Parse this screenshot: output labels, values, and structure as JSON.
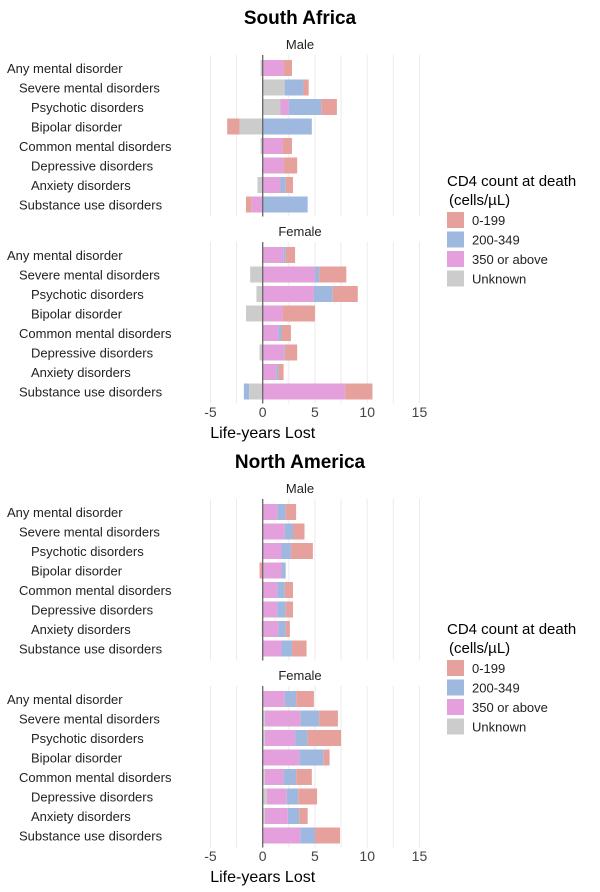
{
  "chart_data": {
    "type": "bar",
    "orientation": "horizontal-stacked",
    "xlabel": "Life-years Lost",
    "xlim": [
      -6,
      16
    ],
    "xticks": [
      "-5",
      "0",
      "5",
      "10",
      "15"
    ],
    "grid": true,
    "legend": {
      "title": "CD4 count at death",
      "subtitle": "(cells/µL)",
      "placement": "right",
      "entries": [
        {
          "key": "r",
          "label": "0-199",
          "color": "#e6a19c"
        },
        {
          "key": "b",
          "label": "200-349",
          "color": "#9fb8e0"
        },
        {
          "key": "p",
          "label": "350 or above",
          "color": "#e3a0dc"
        },
        {
          "key": "g",
          "label": "Unknown",
          "color": "#cccccc"
        }
      ]
    },
    "categories": [
      "Any mental disorder",
      "Severe mental disorders",
      "Psychotic disorders",
      "Bipolar disorder",
      "Common mental disorders",
      "Depressive disorders",
      "Anxiety disorders",
      "Substance use disorders"
    ],
    "category_indent": [
      0,
      1,
      2,
      2,
      1,
      2,
      2,
      1
    ],
    "segment_format": "[series_key, start, end] in life-years",
    "regions": [
      {
        "title": "South Africa",
        "panels": [
          {
            "label": "Male",
            "rows": [
              [
                [
                  "g",
                  -0.2,
                  0
                ],
                [
                  "p",
                  0,
                  2.0
                ],
                [
                  "r",
                  2.0,
                  2.8
                ]
              ],
              [
                [
                  "g",
                  0,
                  2.1
                ],
                [
                  "b",
                  2.1,
                  3.9
                ],
                [
                  "r",
                  3.9,
                  4.4
                ]
              ],
              [
                [
                  "g",
                  0,
                  1.7
                ],
                [
                  "p",
                  1.7,
                  2.5
                ],
                [
                  "b",
                  2.5,
                  5.6
                ],
                [
                  "r",
                  5.6,
                  7.1
                ]
              ],
              [
                [
                  "r",
                  -3.4,
                  -2.2
                ],
                [
                  "g",
                  -2.2,
                  0
                ],
                [
                  "b",
                  0,
                  4.7
                ]
              ],
              [
                [
                  "g",
                  -0.2,
                  0
                ],
                [
                  "p",
                  0,
                  1.9
                ],
                [
                  "r",
                  1.9,
                  2.8
                ]
              ],
              [
                [
                  "p",
                  0,
                  2.0
                ],
                [
                  "r",
                  2.0,
                  3.3
                ]
              ],
              [
                [
                  "g",
                  -0.5,
                  0
                ],
                [
                  "p",
                  0,
                  1.7
                ],
                [
                  "b",
                  1.7,
                  2.2
                ],
                [
                  "r",
                  2.2,
                  2.9
                ]
              ],
              [
                [
                  "r",
                  -1.6,
                  -1.05
                ],
                [
                  "p",
                  -1.05,
                  0
                ],
                [
                  "b",
                  0,
                  4.3
                ]
              ]
            ]
          },
          {
            "label": "Female",
            "rows": [
              [
                [
                  "p",
                  0,
                  2.0
                ],
                [
                  "b",
                  2.0,
                  2.2
                ],
                [
                  "r",
                  2.2,
                  3.1
                ]
              ],
              [
                [
                  "g",
                  -1.2,
                  0
                ],
                [
                  "p",
                  0,
                  5.0
                ],
                [
                  "b",
                  5.0,
                  5.4
                ],
                [
                  "r",
                  5.4,
                  8.0
                ]
              ],
              [
                [
                  "g",
                  -0.6,
                  0
                ],
                [
                  "p",
                  0,
                  4.9
                ],
                [
                  "b",
                  4.9,
                  6.7
                ],
                [
                  "r",
                  6.7,
                  9.1
                ]
              ],
              [
                [
                  "g",
                  -1.6,
                  0
                ],
                [
                  "p",
                  0,
                  1.9
                ],
                [
                  "r",
                  1.9,
                  5.0
                ]
              ],
              [
                [
                  "p",
                  0,
                  1.5
                ],
                [
                  "b",
                  1.5,
                  1.8
                ],
                [
                  "r",
                  1.8,
                  2.7
                ]
              ],
              [
                [
                  "g",
                  -0.3,
                  0
                ],
                [
                  "p",
                  0,
                  2.0
                ],
                [
                  "b",
                  2.0,
                  2.1
                ],
                [
                  "r",
                  2.1,
                  3.3
                ]
              ],
              [
                [
                  "p",
                  0,
                  1.3
                ],
                [
                  "b",
                  1.3,
                  1.5
                ],
                [
                  "r",
                  1.5,
                  2.0
                ]
              ],
              [
                [
                  "b",
                  -1.8,
                  -1.3
                ],
                [
                  "g",
                  -1.3,
                  0
                ],
                [
                  "p",
                  0,
                  7.9
                ],
                [
                  "r",
                  7.9,
                  10.5
                ]
              ]
            ]
          }
        ]
      },
      {
        "title": "North America",
        "panels": [
          {
            "label": "Male",
            "rows": [
              [
                [
                  "p",
                  0,
                  1.4
                ],
                [
                  "b",
                  1.4,
                  2.2
                ],
                [
                  "r",
                  2.2,
                  3.2
                ]
              ],
              [
                [
                  "p",
                  0,
                  2.1
                ],
                [
                  "b",
                  2.1,
                  2.9
                ],
                [
                  "r",
                  2.9,
                  4.0
                ]
              ],
              [
                [
                  "p",
                  0,
                  1.8
                ],
                [
                  "b",
                  1.8,
                  2.7
                ],
                [
                  "r",
                  2.7,
                  4.8
                ]
              ],
              [
                [
                  "r",
                  -0.3,
                  0
                ],
                [
                  "p",
                  0,
                  1.8
                ],
                [
                  "b",
                  1.8,
                  2.2
                ]
              ],
              [
                [
                  "p",
                  0,
                  1.4
                ],
                [
                  "b",
                  1.4,
                  2.1
                ],
                [
                  "r",
                  2.1,
                  2.9
                ]
              ],
              [
                [
                  "p",
                  0,
                  1.4
                ],
                [
                  "b",
                  1.4,
                  2.2
                ],
                [
                  "r",
                  2.2,
                  2.9
                ]
              ],
              [
                [
                  "g",
                  -0.1,
                  0
                ],
                [
                  "p",
                  0,
                  1.5
                ],
                [
                  "b",
                  1.5,
                  2.2
                ],
                [
                  "r",
                  2.2,
                  2.6
                ]
              ],
              [
                [
                  "p",
                  0,
                  1.8
                ],
                [
                  "b",
                  1.8,
                  2.8
                ],
                [
                  "r",
                  2.8,
                  4.2
                ]
              ]
            ]
          },
          {
            "label": "Female",
            "rows": [
              [
                [
                  "p",
                  0,
                  2.1
                ],
                [
                  "b",
                  2.1,
                  3.2
                ],
                [
                  "r",
                  3.2,
                  4.9
                ]
              ],
              [
                [
                  "g",
                  0,
                  0.2
                ],
                [
                  "p",
                  0.2,
                  3.6
                ],
                [
                  "b",
                  3.6,
                  5.4
                ],
                [
                  "r",
                  5.4,
                  7.2
                ]
              ],
              [
                [
                  "g",
                  0,
                  0.2
                ],
                [
                  "p",
                  0.2,
                  3.1
                ],
                [
                  "b",
                  3.1,
                  4.3
                ],
                [
                  "r",
                  4.3,
                  7.5
                ]
              ],
              [
                [
                  "p",
                  0,
                  3.5
                ],
                [
                  "b",
                  3.5,
                  5.8
                ],
                [
                  "r",
                  5.8,
                  6.4
                ]
              ],
              [
                [
                  "g",
                  0,
                  0.2
                ],
                [
                  "p",
                  0.2,
                  2.0
                ],
                [
                  "b",
                  2.0,
                  3.2
                ],
                [
                  "r",
                  3.2,
                  4.7
                ]
              ],
              [
                [
                  "g",
                  0,
                  0.4
                ],
                [
                  "p",
                  0.4,
                  2.3
                ],
                [
                  "b",
                  2.3,
                  3.4
                ],
                [
                  "r",
                  3.4,
                  5.2
                ]
              ],
              [
                [
                  "g",
                  0,
                  0.2
                ],
                [
                  "p",
                  0.2,
                  2.4
                ],
                [
                  "b",
                  2.4,
                  3.5
                ],
                [
                  "r",
                  3.5,
                  4.3
                ]
              ],
              [
                [
                  "p",
                  0,
                  3.6
                ],
                [
                  "b",
                  3.6,
                  5.0
                ],
                [
                  "r",
                  5.0,
                  7.4
                ]
              ]
            ]
          }
        ]
      }
    ]
  }
}
